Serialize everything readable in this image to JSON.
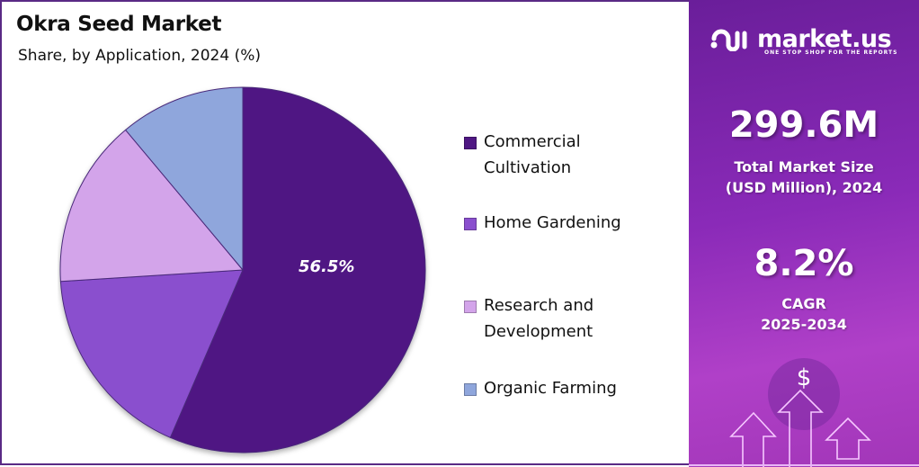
{
  "header": {
    "title": "Okra Seed Market",
    "subtitle": "Share, by Application, 2024 (%)"
  },
  "chart_data": {
    "type": "pie",
    "title": "Okra Seed Market",
    "subtitle": "Share, by Application, 2024 (%)",
    "categories": [
      "Commercial Cultivation",
      "Home Gardening",
      "Research and Development",
      "Organic Farming"
    ],
    "values": [
      56.5,
      17.5,
      14.9,
      11.1
    ],
    "colors": [
      "#4f1783",
      "#8a4fce",
      "#d3a4ea",
      "#8fa6dc"
    ],
    "data_labels": [
      "56.5%"
    ],
    "start_angle": "12 o'clock, clockwise",
    "legend_position": "right"
  },
  "legend": {
    "items": [
      {
        "label": "Commercial\nCultivation",
        "color": "#4f1783"
      },
      {
        "label": "Home Gardening",
        "color": "#8a4fce"
      },
      {
        "label": "Research and\nDevelopment",
        "color": "#d3a4ea"
      },
      {
        "label": "Organic Farming",
        "color": "#8fa6dc"
      }
    ]
  },
  "pie_label": "56.5%",
  "sidebar": {
    "brand": "market.us",
    "tagline": "ONE STOP SHOP FOR THE REPORTS",
    "market_size_value": "299.6M",
    "market_size_label": "Total Market Size\n(USD Million), 2024",
    "cagr_value": "8.2%",
    "cagr_label": "CAGR\n2025-2034",
    "decor_icon": "$"
  }
}
